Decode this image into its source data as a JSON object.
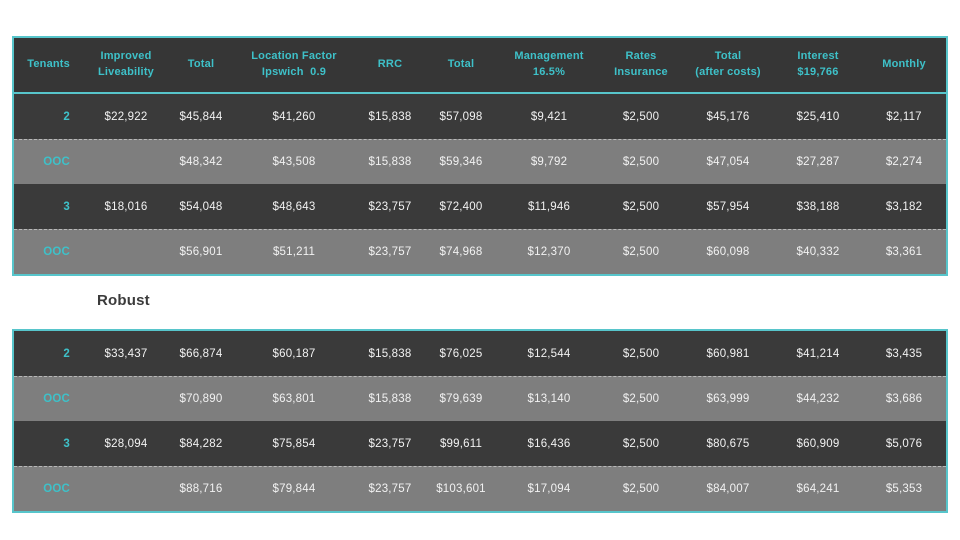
{
  "colors": {
    "accent_teal": "#3EC1C9",
    "header_bg": "#363636",
    "dark_row_bg": "#3A3A3A",
    "gray_row_bg": "#7E7E7E",
    "border_teal": "#57C5CB",
    "body_text": "#F2F2F2",
    "label_text": "#3B3B3B"
  },
  "section_label": "Robust",
  "columns": [
    "Tenants",
    "Improved\nLiveability",
    "Total",
    "Location Factor\nIpswich  0.9",
    "RRC",
    "Total",
    "Management\n16.5%",
    "Rates\nInsurance",
    "Total\n(after costs)",
    "Interest\n$19,766",
    "Monthly"
  ],
  "tables": [
    {
      "name": "scenario-standard",
      "show_header": true,
      "rows": [
        [
          "2",
          "$22,922",
          "$45,844",
          "$41,260",
          "$15,838",
          "$57,098",
          "$9,421",
          "$2,500",
          "$45,176",
          "$25,410",
          "$2,117"
        ],
        [
          "OOC",
          "",
          "$48,342",
          "$43,508",
          "$15,838",
          "$59,346",
          "$9,792",
          "$2,500",
          "$47,054",
          "$27,287",
          "$2,274"
        ],
        [
          "3",
          "$18,016",
          "$54,048",
          "$48,643",
          "$23,757",
          "$72,400",
          "$11,946",
          "$2,500",
          "$57,954",
          "$38,188",
          "$3,182"
        ],
        [
          "OOC",
          "",
          "$56,901",
          "$51,211",
          "$23,757",
          "$74,968",
          "$12,370",
          "$2,500",
          "$60,098",
          "$40,332",
          "$3,361"
        ]
      ]
    },
    {
      "name": "scenario-robust",
      "show_header": false,
      "rows": [
        [
          "2",
          "$33,437",
          "$66,874",
          "$60,187",
          "$15,838",
          "$76,025",
          "$12,544",
          "$2,500",
          "$60,981",
          "$41,214",
          "$3,435"
        ],
        [
          "OOC",
          "",
          "$70,890",
          "$63,801",
          "$15,838",
          "$79,639",
          "$13,140",
          "$2,500",
          "$63,999",
          "$44,232",
          "$3,686"
        ],
        [
          "3",
          "$28,094",
          "$84,282",
          "$75,854",
          "$23,757",
          "$99,611",
          "$16,436",
          "$2,500",
          "$80,675",
          "$60,909",
          "$5,076"
        ],
        [
          "OOC",
          "",
          "$88,716",
          "$79,844",
          "$23,757",
          "$103,601",
          "$17,094",
          "$2,500",
          "$84,007",
          "$64,241",
          "$5,353"
        ]
      ]
    }
  ]
}
